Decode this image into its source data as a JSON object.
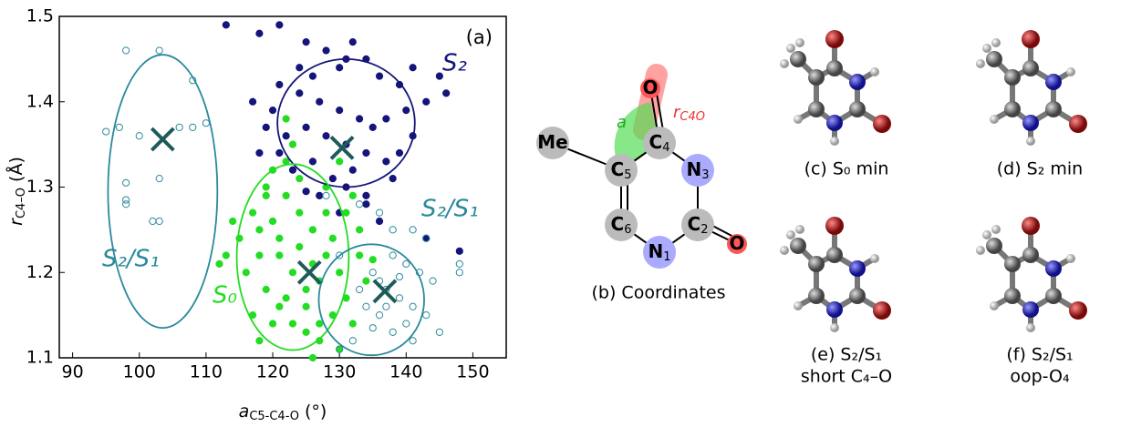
{
  "chart_data": {
    "type": "scatter",
    "panel_label": "(a)",
    "x_label": {
      "symbol": "a",
      "subscript": "C5-C4-O",
      "unit": "(°)"
    },
    "y_label": {
      "symbol": "r",
      "subscript": "C4–O",
      "unit": "(Å)"
    },
    "xlim": [
      88,
      155
    ],
    "ylim": [
      1.1,
      1.5
    ],
    "xticks": [
      90,
      100,
      110,
      120,
      130,
      140,
      150
    ],
    "yticks": [
      1.1,
      1.2,
      1.3,
      1.4,
      1.5
    ],
    "series": [
      {
        "color": "#14147a",
        "filled": true,
        "x": [
          113,
          118,
          121,
          125,
          128,
          132,
          131,
          124,
          126,
          130,
          134,
          136,
          139,
          141,
          145,
          146,
          143,
          140,
          137,
          135,
          133,
          130,
          127,
          124,
          121,
          120,
          119,
          122,
          125,
          128,
          131,
          134,
          137,
          139,
          132,
          129,
          126,
          123,
          121,
          127,
          131,
          134,
          138,
          141,
          117,
          118,
          130,
          143,
          148,
          136,
          125,
          134
        ],
        "values": [
          1.49,
          1.48,
          1.49,
          1.47,
          1.46,
          1.47,
          1.45,
          1.44,
          1.43,
          1.44,
          1.45,
          1.43,
          1.42,
          1.44,
          1.43,
          1.41,
          1.4,
          1.39,
          1.38,
          1.37,
          1.38,
          1.39,
          1.4,
          1.41,
          1.42,
          1.39,
          1.37,
          1.36,
          1.37,
          1.36,
          1.35,
          1.34,
          1.33,
          1.34,
          1.32,
          1.31,
          1.33,
          1.32,
          1.34,
          1.29,
          1.3,
          1.29,
          1.31,
          1.36,
          1.4,
          1.34,
          1.27,
          1.24,
          1.225,
          1.26,
          1.295,
          1.28
        ]
      },
      {
        "color": "#22dd22",
        "filled": true,
        "x": [
          115,
          117,
          119,
          120,
          122,
          118,
          116,
          119,
          121,
          123,
          125,
          127,
          129,
          131,
          130,
          128,
          126,
          124,
          122,
          120,
          118,
          121,
          123,
          125,
          127,
          129,
          131,
          132,
          128,
          124,
          126,
          124,
          122,
          120,
          118,
          117,
          113,
          112,
          114,
          133,
          134,
          132,
          130,
          126,
          133,
          135,
          128,
          119,
          123,
          122,
          130,
          125,
          121,
          127
        ],
        "values": [
          1.24,
          1.27,
          1.3,
          1.32,
          1.33,
          1.22,
          1.2,
          1.18,
          1.16,
          1.14,
          1.13,
          1.12,
          1.15,
          1.17,
          1.2,
          1.22,
          1.25,
          1.27,
          1.29,
          1.26,
          1.25,
          1.22,
          1.2,
          1.18,
          1.19,
          1.24,
          1.27,
          1.29,
          1.3,
          1.31,
          1.21,
          1.23,
          1.17,
          1.14,
          1.12,
          1.15,
          1.22,
          1.21,
          1.26,
          1.22,
          1.19,
          1.14,
          1.11,
          1.1,
          1.25,
          1.215,
          1.27,
          1.29,
          1.35,
          1.38,
          1.33,
          1.16,
          1.24,
          1.14
        ]
      },
      {
        "color": "#2a8a9a",
        "filled": false,
        "x": [
          95,
          98,
          103,
          98,
          98,
          98,
          102,
          103,
          103,
          100,
          106,
          108,
          110,
          108,
          97,
          128,
          133,
          136,
          138,
          141,
          143,
          138,
          140,
          142,
          144,
          137,
          139,
          141,
          143,
          140,
          138,
          136,
          134,
          133,
          135,
          132,
          130,
          141,
          145,
          148,
          148,
          136,
          139,
          137,
          135,
          130
        ],
        "values": [
          1.365,
          1.46,
          1.46,
          1.305,
          1.285,
          1.28,
          1.26,
          1.26,
          1.31,
          1.36,
          1.37,
          1.37,
          1.375,
          1.425,
          1.37,
          1.29,
          1.28,
          1.27,
          1.25,
          1.25,
          1.24,
          1.22,
          1.21,
          1.2,
          1.19,
          1.18,
          1.17,
          1.16,
          1.15,
          1.14,
          1.13,
          1.15,
          1.16,
          1.18,
          1.2,
          1.12,
          1.11,
          1.12,
          1.13,
          1.21,
          1.2,
          1.19,
          1.195,
          1.16,
          1.135,
          1.22
        ]
      }
    ],
    "ellipses": [
      {
        "cx": 103.5,
        "cy": 1.295,
        "rx": 8.2,
        "ry": 0.16,
        "color": "#2a8a9a"
      },
      {
        "cx": 131,
        "cy": 1.375,
        "rx": 10.3,
        "ry": 0.075,
        "color": "#14147a"
      },
      {
        "cx": 123,
        "cy": 1.218,
        "rx": 8.4,
        "ry": 0.109,
        "color": "#22dd22"
      },
      {
        "cx": 134.8,
        "cy": 1.168,
        "rx": 7.9,
        "ry": 0.065,
        "color": "#2a8a9a"
      }
    ],
    "centers": {
      "color": "#1f5a5a",
      "x": [
        103.5,
        130.4,
        125.5,
        136.8
      ],
      "values": [
        1.356,
        1.346,
        1.2,
        1.178
      ]
    },
    "cluster_labels": [
      "S₂",
      "S₂/S₁",
      "S₂/S₁",
      "S₀"
    ]
  },
  "diagram": {
    "atoms": [
      {
        "symbol": "Me",
        "index": ""
      },
      {
        "symbol": "C",
        "index": "5"
      },
      {
        "symbol": "C",
        "index": "4"
      },
      {
        "symbol": "N",
        "index": "3"
      },
      {
        "symbol": "C",
        "index": "2"
      },
      {
        "symbol": "N",
        "index": "1"
      },
      {
        "symbol": "C",
        "index": "6"
      },
      {
        "symbol": "O",
        "index": ""
      },
      {
        "symbol": "O",
        "index": ""
      }
    ],
    "angle_label": "a",
    "bond_label": {
      "symbol": "r",
      "subscript": "C4O"
    },
    "caption": "(b) Coordinates"
  },
  "panels": [
    {
      "lines": [
        "(c) S₀ min"
      ]
    },
    {
      "lines": [
        "(d) S₂ min"
      ]
    },
    {
      "lines": [
        "(e) S₂/S₁",
        "short C₄–O"
      ]
    },
    {
      "lines": [
        "(f) S₂/S₁",
        "oop-O₄"
      ]
    }
  ]
}
